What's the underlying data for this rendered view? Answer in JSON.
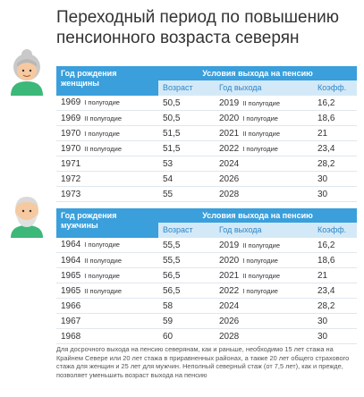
{
  "title": [
    "Переходный период по повышению",
    "пенсионного возраста северян"
  ],
  "tables": [
    {
      "header": {
        "birth": "Год рождения женщины",
        "group": "Условия выхода на пенсию",
        "cols": [
          "Возраст",
          "Год выхода",
          "Коэфф."
        ]
      },
      "rows": [
        {
          "year": "1969",
          "half": "I полугодие",
          "age": "50,5",
          "exit_year": "2019",
          "exit_half": "II полугодие",
          "coef": "16,2"
        },
        {
          "year": "1969",
          "half": "II полугодие",
          "age": "50,5",
          "exit_year": "2020",
          "exit_half": "I полугодие",
          "coef": "18,6"
        },
        {
          "year": "1970",
          "half": "I полугодие",
          "age": "51,5",
          "exit_year": "2021",
          "exit_half": "II полугодие",
          "coef": "21"
        },
        {
          "year": "1970",
          "half": "II полугодие",
          "age": "51,5",
          "exit_year": "2022",
          "exit_half": "I полугодие",
          "coef": "23,4"
        },
        {
          "year": "1971",
          "age": "53",
          "exit_year": "2024",
          "coef": "28,2"
        },
        {
          "year": "1972",
          "age": "54",
          "exit_year": "2026",
          "coef": "30"
        },
        {
          "year": "1973",
          "age": "55",
          "exit_year": "2028",
          "coef": "30"
        }
      ]
    },
    {
      "header": {
        "birth": "Год рождения мужчины",
        "group": "Условия выхода на пенсию",
        "cols": [
          "Возраст",
          "Год выхода",
          "Коэфф."
        ]
      },
      "rows": [
        {
          "year": "1964",
          "half": "I полугодие",
          "age": "55,5",
          "exit_year": "2019",
          "exit_half": "II полугодие",
          "coef": "16,2"
        },
        {
          "year": "1964",
          "half": "II полугодие",
          "age": "55,5",
          "exit_year": "2020",
          "exit_half": "I полугодие",
          "coef": "18,6"
        },
        {
          "year": "1965",
          "half": "I полугодие",
          "age": "56,5",
          "exit_year": "2021",
          "exit_half": "II полугодие",
          "coef": "21"
        },
        {
          "year": "1965",
          "half": "II полугодие",
          "age": "56,5",
          "exit_year": "2022",
          "exit_half": "I полугодие",
          "coef": "23,4"
        },
        {
          "year": "1966",
          "age": "58",
          "exit_year": "2024",
          "coef": "28,2"
        },
        {
          "year": "1967",
          "age": "59",
          "exit_year": "2026",
          "coef": "30"
        },
        {
          "year": "1968",
          "age": "60",
          "exit_year": "2028",
          "coef": "30"
        }
      ]
    }
  ],
  "footnote": "Для досрочного выхода на пенсию северянам, как и раньше, необходимо 15 лет стажа на Крайнем Севере или 20 лет стажа в приравненных районах, а также 20 лет общего страхового стажа для женщин и 25 лет для мужчин. Неполный северный стаж (от 7,5 лет), как и прежде, позволяет уменьшить возраст выхода на пенсию"
}
